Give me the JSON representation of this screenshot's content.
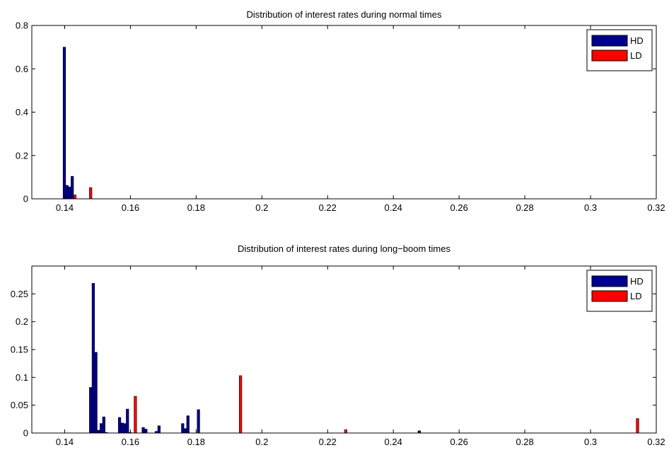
{
  "chart_data": [
    {
      "type": "bar",
      "title": "Distribution of interest rates during normal times",
      "xlabel": "",
      "ylabel": "",
      "xlim": [
        0.13,
        0.32
      ],
      "ylim": [
        0,
        0.8
      ],
      "xticks": [
        "0.14",
        "0.16",
        "0.18",
        "0.2",
        "0.22",
        "0.24",
        "0.26",
        "0.28",
        "0.3",
        "0.32"
      ],
      "yticks": [
        "0",
        "0.2",
        "0.4",
        "0.6",
        "0.8"
      ],
      "legend": {
        "position": "top-right",
        "entries": [
          "HD",
          "LD"
        ]
      },
      "series": [
        {
          "name": "HD",
          "color": "#00008f",
          "x": [
            0.1399,
            0.1407,
            0.1415,
            0.1423
          ],
          "values": [
            0.7,
            0.062,
            0.055,
            0.104
          ]
        },
        {
          "name": "LD",
          "color": "#ff0000",
          "x": [
            0.1431,
            0.1479
          ],
          "values": [
            0.018,
            0.052
          ]
        }
      ]
    },
    {
      "type": "bar",
      "title": "Distribution of interest rates during long−boom times",
      "xlabel": "",
      "ylabel": "",
      "xlim": [
        0.13,
        0.32
      ],
      "ylim": [
        0,
        0.3
      ],
      "xticks": [
        "0.14",
        "0.16",
        "0.18",
        "0.2",
        "0.22",
        "0.24",
        "0.26",
        "0.28",
        "0.3",
        "0.32"
      ],
      "yticks": [
        "0",
        "0.05",
        "0.1",
        "0.15",
        "0.2",
        "0.25"
      ],
      "legend": {
        "position": "top-right",
        "entries": [
          "HD",
          "LD"
        ]
      },
      "series": [
        {
          "name": "HD",
          "color": "#00008f",
          "x": [
            0.1479,
            0.1487,
            0.1495,
            0.1503,
            0.1511,
            0.1519,
            0.1527,
            0.1567,
            0.1575,
            0.1583,
            0.1591,
            0.1599,
            0.1639,
            0.1647,
            0.1679,
            0.1687,
            0.1759,
            0.1767,
            0.1775,
            0.1807,
            0.2479
          ],
          "values": [
            0.082,
            0.269,
            0.145,
            0.005,
            0.017,
            0.029,
            0.001,
            0.028,
            0.018,
            0.017,
            0.043,
            0.001,
            0.01,
            0.007,
            0.003,
            0.013,
            0.017,
            0.008,
            0.031,
            0.042,
            0.004
          ]
        },
        {
          "name": "LD",
          "color": "#ff0000",
          "x": [
            0.1615,
            0.1935,
            0.2255,
            0.3143
          ],
          "values": [
            0.066,
            0.103,
            0.006,
            0.026
          ]
        }
      ]
    }
  ]
}
